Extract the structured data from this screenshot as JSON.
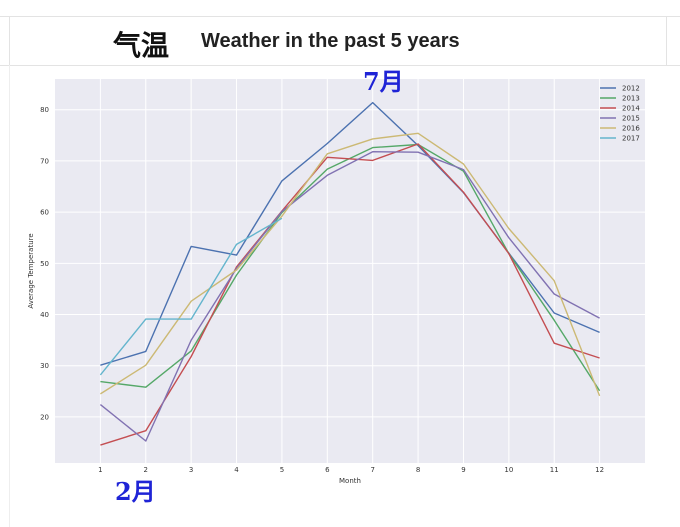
{
  "header": {
    "cjk_title": "气温",
    "title": "Weather in the past 5 years"
  },
  "annotations": {
    "top": "7月",
    "bottom": "2月"
  },
  "colors": {
    "plot_bg": "#eaeaf2",
    "grid": "#ffffff",
    "annotation": "#1f24d6"
  },
  "chart_data": {
    "type": "line",
    "title": "",
    "xlabel": "Month",
    "ylabel": "Average Temperature",
    "x": [
      1,
      2,
      3,
      4,
      5,
      6,
      7,
      8,
      9,
      10,
      11,
      12
    ],
    "xlim": [
      0,
      13
    ],
    "ylim": [
      11,
      86
    ],
    "yticks": [
      20,
      30,
      40,
      50,
      60,
      70,
      80
    ],
    "grid": true,
    "legend_position": "top-right",
    "series": [
      {
        "name": "2012",
        "color": "#4c72b0",
        "values": [
          30.1,
          32.8,
          53.3,
          51.6,
          66.1,
          73.4,
          81.4,
          73.0,
          63.8,
          52.0,
          40.3,
          36.5
        ]
      },
      {
        "name": "2013",
        "color": "#55a868",
        "values": [
          26.9,
          25.8,
          32.9,
          47.7,
          59.9,
          68.4,
          72.6,
          73.2,
          68.0,
          51.9,
          38.9,
          25.1
        ]
      },
      {
        "name": "2014",
        "color": "#c44e52",
        "values": [
          14.5,
          17.3,
          31.8,
          49.3,
          60.2,
          70.7,
          70.1,
          73.3,
          63.9,
          51.9,
          34.4,
          31.5
        ]
      },
      {
        "name": "2015",
        "color": "#8172b2",
        "values": [
          22.4,
          15.3,
          35.0,
          49.0,
          60.1,
          67.2,
          71.8,
          71.7,
          68.3,
          55.0,
          44.0,
          39.3
        ]
      },
      {
        "name": "2016",
        "color": "#ccb974",
        "values": [
          24.5,
          30.1,
          42.6,
          48.7,
          59.2,
          71.4,
          74.3,
          75.4,
          69.4,
          56.8,
          46.6,
          24.1
        ]
      },
      {
        "name": "2017",
        "color": "#64b5cd",
        "values": [
          28.2,
          39.1,
          39.1,
          53.7,
          58.8,
          null,
          null,
          null,
          null,
          null,
          null,
          null
        ]
      }
    ]
  }
}
